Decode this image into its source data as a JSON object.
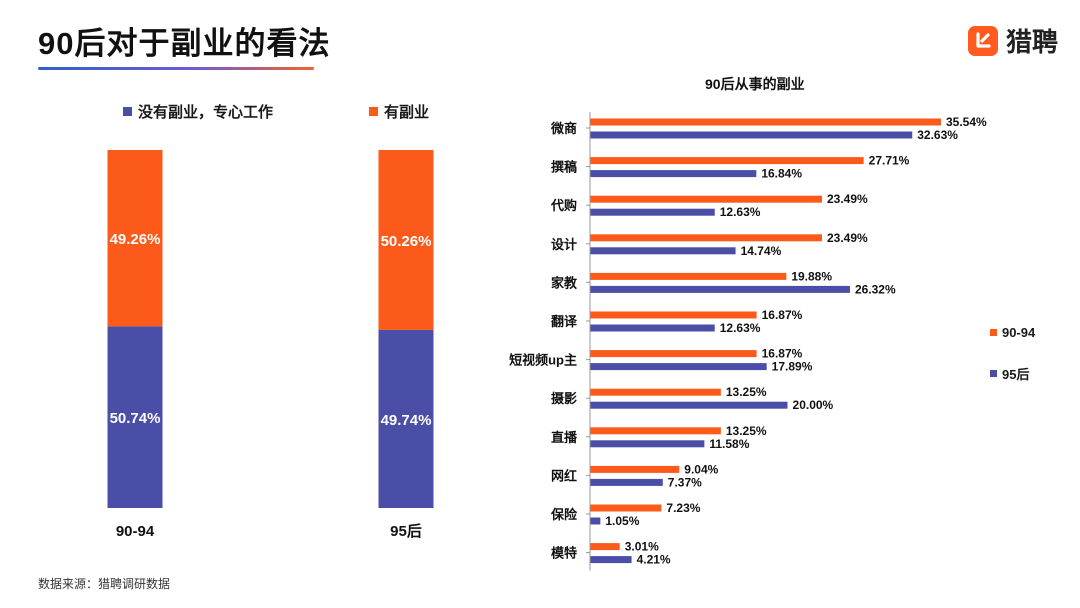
{
  "title": "90后对于副业的看法",
  "logo": {
    "text": "猎聘",
    "icon": "liepin-logo-icon"
  },
  "source": "数据来源：猎聘调研数据",
  "colors": {
    "orange": "#fc5a1b",
    "blue": "#4b4ea6",
    "accent_line_start": "#2f5fd0",
    "accent_line_end": "#f0642a"
  },
  "chart_data": [
    {
      "type": "bar",
      "stacked": true,
      "percent": true,
      "categories": [
        "90-94",
        "95后"
      ],
      "series": [
        {
          "name": "没有副业，专心工作",
          "color": "#4b4ea6",
          "values": [
            50.74,
            49.74
          ],
          "labels": [
            "50.74%",
            "49.74%"
          ]
        },
        {
          "name": "有副业",
          "color": "#fc5a1b",
          "values": [
            49.26,
            50.26
          ],
          "labels": [
            "49.26%",
            "50.26%"
          ]
        }
      ],
      "ylim": [
        0,
        100
      ],
      "legend": "top"
    },
    {
      "type": "bar",
      "orientation": "horizontal",
      "title": "90后从事的副业",
      "categories": [
        "微商",
        "撰稿",
        "代购",
        "设计",
        "家教",
        "翻译",
        "短视频up主",
        "摄影",
        "直播",
        "网红",
        "保险",
        "模特"
      ],
      "series": [
        {
          "name": "90-94",
          "color": "#fc5a1b",
          "values": [
            35.54,
            27.71,
            23.49,
            23.49,
            19.88,
            16.87,
            16.87,
            13.25,
            13.25,
            9.04,
            7.23,
            3.01
          ],
          "labels": [
            "35.54%",
            "27.71%",
            "23.49%",
            "23.49%",
            "19.88%",
            "16.87%",
            "16.87%",
            "13.25%",
            "13.25%",
            "9.04%",
            "7.23%",
            "3.01%"
          ]
        },
        {
          "name": "95后",
          "color": "#4b4ea6",
          "values": [
            32.63,
            16.84,
            12.63,
            14.74,
            26.32,
            12.63,
            17.89,
            20.0,
            11.58,
            7.37,
            1.05,
            4.21
          ],
          "labels": [
            "32.63%",
            "16.84%",
            "12.63%",
            "14.74%",
            "26.32%",
            "12.63%",
            "17.89%",
            "20.00%",
            "11.58%",
            "7.37%",
            "1.05%",
            "4.21%"
          ]
        }
      ],
      "xlim": [
        0,
        40
      ],
      "legend": "right"
    }
  ]
}
